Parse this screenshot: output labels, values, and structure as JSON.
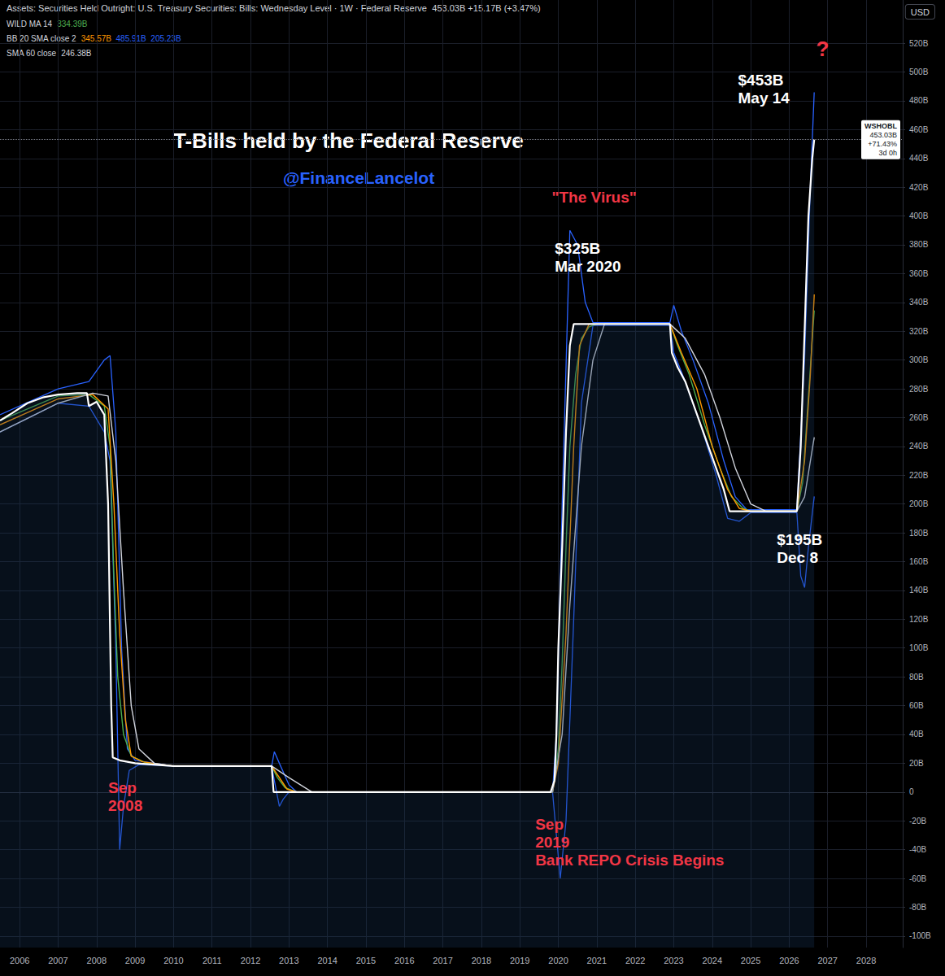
{
  "chart_data": {
    "type": "line",
    "title": "T-Bills held by the Federal Reserve",
    "subtitle": "@FinanceLancelot",
    "header": {
      "text": "Assets: Securities Held Outright: U.S. Treasury Securities: Bills: Wednesday Level · 1W · Federal Reserve",
      "value": "453.03B +15.17B (+3.47%)"
    },
    "currency": "USD",
    "price_tag": [
      "WSHOBL",
      "453.03B",
      "+71.43%",
      "3d 0h"
    ],
    "grid": true,
    "xlim": [
      2005.49,
      2028.95
    ],
    "xticks": [
      2006,
      2007,
      2008,
      2009,
      2010,
      2011,
      2012,
      2013,
      2014,
      2015,
      2016,
      2017,
      2018,
      2019,
      2020,
      2021,
      2022,
      2023,
      2024,
      2025,
      2026,
      2027,
      2028
    ],
    "ylim": [
      -108,
      550
    ],
    "yticks": [
      {
        "value": -100,
        "label": "-100B"
      },
      {
        "value": -80,
        "label": "-80B"
      },
      {
        "value": -60,
        "label": "-60B"
      },
      {
        "value": -40,
        "label": "-40B"
      },
      {
        "value": -20,
        "label": "-20B"
      },
      0,
      {
        "value": 20,
        "label": "20B"
      },
      {
        "value": 40,
        "label": "40B"
      },
      {
        "value": 60,
        "label": "60B"
      },
      {
        "value": 80,
        "label": "80B"
      },
      {
        "value": 100,
        "label": "100B"
      },
      {
        "value": 120,
        "label": "120B"
      },
      {
        "value": 140,
        "label": "140B"
      },
      {
        "value": 160,
        "label": "160B"
      },
      {
        "value": 180,
        "label": "180B"
      },
      {
        "value": 200,
        "label": "200B"
      },
      {
        "value": 220,
        "label": "220B"
      },
      {
        "value": 240,
        "label": "240B"
      },
      {
        "value": 260,
        "label": "260B"
      },
      {
        "value": 280,
        "label": "280B"
      },
      {
        "value": 300,
        "label": "300B"
      },
      {
        "value": 320,
        "label": "320B"
      },
      {
        "value": 340,
        "label": "340B"
      },
      {
        "value": 360,
        "label": "360B"
      },
      {
        "value": 380,
        "label": "380B"
      },
      {
        "value": 400,
        "label": "400B"
      },
      {
        "value": 420,
        "label": "420B"
      },
      {
        "value": 440,
        "label": "440B"
      },
      {
        "value": 460,
        "label": "460B"
      },
      {
        "value": 480,
        "label": "480B"
      },
      {
        "value": 500,
        "label": "500B"
      },
      {
        "value": 520,
        "label": "520B"
      }
    ],
    "series": [
      {
        "name": "WSHOBL",
        "color": "#ffffff",
        "x": [
          2005.49,
          2005.8,
          2006.2,
          2006.6,
          2007.0,
          2007.5,
          2007.75,
          2007.8,
          2008.0,
          2008.2,
          2008.3,
          2008.38,
          2008.42,
          2008.6,
          2009.0,
          2009.5,
          2010.0,
          2012.55,
          2012.6,
          2019.8,
          2019.9,
          2019.95,
          2020.0,
          2020.1,
          2020.2,
          2020.3,
          2020.4,
          2022.9,
          2022.95,
          2023.1,
          2023.3,
          2023.5,
          2023.7,
          2023.9,
          2024.1,
          2024.3,
          2024.45,
          2026.2,
          2026.3,
          2026.4,
          2026.5,
          2026.55,
          2026.6,
          2026.65
        ],
        "values": [
          258,
          263,
          270,
          274,
          276,
          277,
          277,
          268,
          271,
          262,
          200,
          60,
          24,
          22,
          20,
          19,
          18,
          18,
          0,
          0,
          8,
          40,
          100,
          170,
          250,
          310,
          325,
          325,
          305,
          295,
          285,
          270,
          255,
          240,
          225,
          210,
          195,
          195,
          240,
          320,
          400,
          420,
          440,
          453.03
        ]
      },
      {
        "name": "WILD MA 14",
        "color": "#4caf50",
        "printed_values": [
          "334.39B"
        ],
        "x": [
          2005.49,
          2007.0,
          2007.8,
          2008.2,
          2008.35,
          2008.45,
          2008.55,
          2008.7,
          2008.9,
          2009.3,
          2010.0,
          2012.55,
          2012.7,
          2012.9,
          2013.2,
          2019.85,
          2020.0,
          2020.1,
          2020.2,
          2020.3,
          2020.45,
          2020.6,
          2020.8,
          2021.0,
          2022.9,
          2023.1,
          2023.4,
          2023.8,
          2024.2,
          2024.5,
          2024.8,
          2025.0,
          2026.2,
          2026.35,
          2026.5,
          2026.65
        ],
        "values": [
          258,
          275,
          276,
          268,
          240,
          150,
          80,
          40,
          25,
          20,
          18,
          18,
          10,
          3,
          0,
          0,
          30,
          90,
          170,
          240,
          290,
          315,
          323,
          325,
          325,
          310,
          290,
          255,
          225,
          205,
          197,
          195,
          195,
          215,
          275,
          334.39
        ]
      },
      {
        "name": "BB 20 SMA close 2",
        "color": "#ff9800",
        "printed_values": [
          "345.57B",
          "485.91B",
          "205.23B"
        ],
        "x": [
          2005.49,
          2007.0,
          2007.9,
          2008.3,
          2008.45,
          2008.6,
          2008.75,
          2008.9,
          2009.2,
          2010.0,
          2012.55,
          2012.95,
          2013.2,
          2019.85,
          2020.0,
          2020.2,
          2020.4,
          2020.55,
          2020.8,
          2022.9,
          2023.2,
          2023.6,
          2024.0,
          2024.4,
          2024.7,
          2025.0,
          2026.2,
          2026.4,
          2026.55,
          2026.65
        ],
        "values": [
          255,
          273,
          276,
          266,
          200,
          110,
          50,
          25,
          21,
          18,
          18,
          2,
          0,
          0,
          20,
          110,
          240,
          310,
          325,
          325,
          305,
          280,
          240,
          210,
          197,
          195,
          195,
          230,
          290,
          345.57
        ],
        "upper": {
          "color": "#2962ff",
          "x": [
            2005.49,
            2007.0,
            2007.8,
            2008.2,
            2008.35,
            2008.5,
            2008.65,
            2008.8,
            2009.0,
            2010.0,
            2012.55,
            2012.62,
            2012.75,
            2013.0,
            2013.2,
            2019.85,
            2019.95,
            2020.1,
            2020.3,
            2020.5,
            2020.7,
            2020.9,
            2022.9,
            2023.0,
            2023.2,
            2023.5,
            2023.9,
            2024.3,
            2024.6,
            2024.9,
            2026.2,
            2026.4,
            2026.55,
            2026.65
          ],
          "values": [
            262,
            280,
            285,
            300,
            303,
            250,
            100,
            30,
            22,
            18,
            18,
            28,
            20,
            5,
            0,
            0,
            40,
            200,
            390,
            380,
            340,
            326,
            326,
            338,
            320,
            300,
            270,
            230,
            205,
            196,
            196,
            300,
            420,
            485.91
          ]
        },
        "lower": {
          "color": "#2962ff",
          "x": [
            2005.49,
            2007.0,
            2007.8,
            2008.2,
            2008.35,
            2008.5,
            2008.6,
            2008.7,
            2008.85,
            2009.1,
            2010.0,
            2012.55,
            2012.62,
            2012.75,
            2012.85,
            2013.0,
            2019.85,
            2019.95,
            2020.05,
            2020.2,
            2020.4,
            2020.6,
            2020.9,
            2022.9,
            2023.0,
            2023.3,
            2023.7,
            2024.1,
            2024.4,
            2024.7,
            2025.0,
            2026.2,
            2026.3,
            2026.4,
            2026.5,
            2026.65
          ],
          "values": [
            250,
            270,
            268,
            250,
            230,
            100,
            -40,
            -10,
            15,
            19,
            18,
            18,
            8,
            -10,
            -5,
            0,
            0,
            -30,
            -60,
            -20,
            120,
            270,
            324,
            324,
            305,
            285,
            255,
            220,
            190,
            188,
            194,
            194,
            150,
            142,
            170,
            205.23
          ]
        }
      },
      {
        "name": "SMA 60 close",
        "color": "#d1d4dc",
        "printed_values": [
          "246.38B"
        ],
        "x": [
          2005.49,
          2007.0,
          2007.9,
          2008.3,
          2008.5,
          2008.7,
          2008.9,
          2009.1,
          2009.5,
          2010.0,
          2012.55,
          2013.0,
          2013.6,
          2019.85,
          2020.1,
          2020.3,
          2020.6,
          2020.9,
          2021.2,
          2022.9,
          2023.3,
          2023.8,
          2024.2,
          2024.6,
          2025.0,
          2025.4,
          2026.2,
          2026.4,
          2026.65
        ],
        "values": [
          250,
          270,
          277,
          275,
          230,
          140,
          60,
          30,
          20,
          18,
          18,
          10,
          0,
          0,
          40,
          130,
          240,
          300,
          325,
          325,
          315,
          290,
          260,
          225,
          200,
          195,
          195,
          205,
          246.38
        ]
      }
    ],
    "annotations": [
      {
        "lines": [
          "$453B",
          "May 14"
        ],
        "color": "#ffffff",
        "x": 2024.67,
        "y": 488
      },
      {
        "lines": [
          "?"
        ],
        "color": "#f23645",
        "x": 2026.7,
        "y": 516
      },
      {
        "lines": [
          "\"The Virus\""
        ],
        "color": "#f23645",
        "x": 2019.83,
        "y": 413
      },
      {
        "lines": [
          "$325B",
          "Mar 2020"
        ],
        "color": "#ffffff",
        "x": 2019.91,
        "y": 371
      },
      {
        "lines": [
          "$195B",
          "Dec 8"
        ],
        "color": "#ffffff",
        "x": 2025.68,
        "y": 169
      },
      {
        "lines": [
          "Sep",
          "2008"
        ],
        "color": "#f23645",
        "x": 2008.3,
        "y": -3
      },
      {
        "lines": [
          "Sep",
          "2019",
          "Bank REPO Crisis Begins"
        ],
        "color": "#f23645",
        "x": 2019.4,
        "y": -35
      }
    ]
  }
}
